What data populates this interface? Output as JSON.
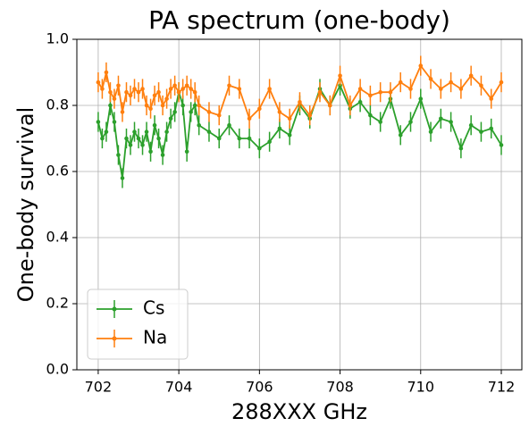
{
  "chart_data": {
    "type": "line",
    "title": "PA spectrum (one-body)",
    "xlabel": "288XXX GHz",
    "ylabel": "One-body survival",
    "x": [
      702.0,
      702.1,
      702.2,
      702.3,
      702.4,
      702.5,
      702.6,
      702.7,
      702.8,
      702.9,
      703.0,
      703.1,
      703.2,
      703.3,
      703.4,
      703.5,
      703.6,
      703.7,
      703.8,
      703.9,
      704.0,
      704.1,
      704.2,
      704.3,
      704.4,
      704.5,
      704.75,
      705.0,
      705.25,
      705.5,
      705.75,
      706.0,
      706.25,
      706.5,
      706.75,
      707.0,
      707.25,
      707.5,
      707.75,
      708.0,
      708.25,
      708.5,
      708.75,
      709.0,
      709.25,
      709.5,
      709.75,
      710.0,
      710.25,
      710.5,
      710.75,
      711.0,
      711.25,
      711.5,
      711.75,
      712.0
    ],
    "series": [
      {
        "name": "Cs",
        "color": "#2ca02c",
        "values": [
          0.75,
          0.7,
          0.72,
          0.8,
          0.75,
          0.65,
          0.58,
          0.7,
          0.68,
          0.72,
          0.7,
          0.68,
          0.72,
          0.66,
          0.74,
          0.7,
          0.65,
          0.72,
          0.76,
          0.78,
          0.84,
          0.8,
          0.66,
          0.78,
          0.8,
          0.74,
          0.72,
          0.7,
          0.74,
          0.7,
          0.7,
          0.67,
          0.69,
          0.73,
          0.71,
          0.8,
          0.76,
          0.85,
          0.8,
          0.86,
          0.79,
          0.81,
          0.77,
          0.75,
          0.82,
          0.71,
          0.75,
          0.82,
          0.72,
          0.76,
          0.75,
          0.67,
          0.74,
          0.72,
          0.73,
          0.68
        ],
        "errors": [
          0.03,
          0.03,
          0.03,
          0.03,
          0.03,
          0.03,
          0.03,
          0.03,
          0.03,
          0.03,
          0.03,
          0.03,
          0.03,
          0.03,
          0.03,
          0.03,
          0.03,
          0.03,
          0.03,
          0.03,
          0.03,
          0.03,
          0.03,
          0.03,
          0.03,
          0.03,
          0.03,
          0.03,
          0.03,
          0.03,
          0.03,
          0.03,
          0.03,
          0.03,
          0.03,
          0.03,
          0.03,
          0.03,
          0.03,
          0.03,
          0.03,
          0.03,
          0.03,
          0.03,
          0.03,
          0.03,
          0.03,
          0.03,
          0.03,
          0.03,
          0.03,
          0.03,
          0.03,
          0.03,
          0.03,
          0.03
        ]
      },
      {
        "name": "Na",
        "color": "#ff7f0e",
        "values": [
          0.87,
          0.85,
          0.9,
          0.84,
          0.82,
          0.86,
          0.78,
          0.84,
          0.83,
          0.85,
          0.84,
          0.85,
          0.8,
          0.79,
          0.83,
          0.84,
          0.8,
          0.82,
          0.85,
          0.86,
          0.84,
          0.85,
          0.86,
          0.85,
          0.84,
          0.8,
          0.78,
          0.77,
          0.86,
          0.85,
          0.76,
          0.79,
          0.85,
          0.78,
          0.76,
          0.81,
          0.77,
          0.84,
          0.8,
          0.89,
          0.8,
          0.85,
          0.83,
          0.84,
          0.84,
          0.87,
          0.85,
          0.92,
          0.88,
          0.85,
          0.87,
          0.85,
          0.89,
          0.86,
          0.82,
          0.87
        ],
        "errors": [
          0.03,
          0.03,
          0.03,
          0.03,
          0.03,
          0.03,
          0.03,
          0.03,
          0.03,
          0.03,
          0.03,
          0.03,
          0.03,
          0.03,
          0.03,
          0.03,
          0.03,
          0.03,
          0.03,
          0.03,
          0.03,
          0.03,
          0.03,
          0.03,
          0.03,
          0.03,
          0.03,
          0.03,
          0.03,
          0.03,
          0.03,
          0.03,
          0.03,
          0.03,
          0.03,
          0.03,
          0.03,
          0.03,
          0.03,
          0.03,
          0.03,
          0.03,
          0.03,
          0.03,
          0.03,
          0.03,
          0.03,
          0.03,
          0.03,
          0.03,
          0.03,
          0.03,
          0.03,
          0.03,
          0.03,
          0.03
        ]
      }
    ],
    "xlim": [
      701.47,
      712.51
    ],
    "ylim": [
      0,
      1
    ],
    "xticks": [
      702,
      704,
      706,
      708,
      710,
      712
    ],
    "yticks": [
      {
        "value": 0,
        "label": "0.0"
      },
      {
        "value": 0.2,
        "label": "0.2"
      },
      {
        "value": 0.4,
        "label": "0.4"
      },
      {
        "value": 0.6,
        "label": "0.6"
      },
      {
        "value": 0.8,
        "label": "0.8"
      },
      {
        "value": 1,
        "label": "1.0"
      }
    ],
    "grid": true,
    "legend": "lower left"
  }
}
